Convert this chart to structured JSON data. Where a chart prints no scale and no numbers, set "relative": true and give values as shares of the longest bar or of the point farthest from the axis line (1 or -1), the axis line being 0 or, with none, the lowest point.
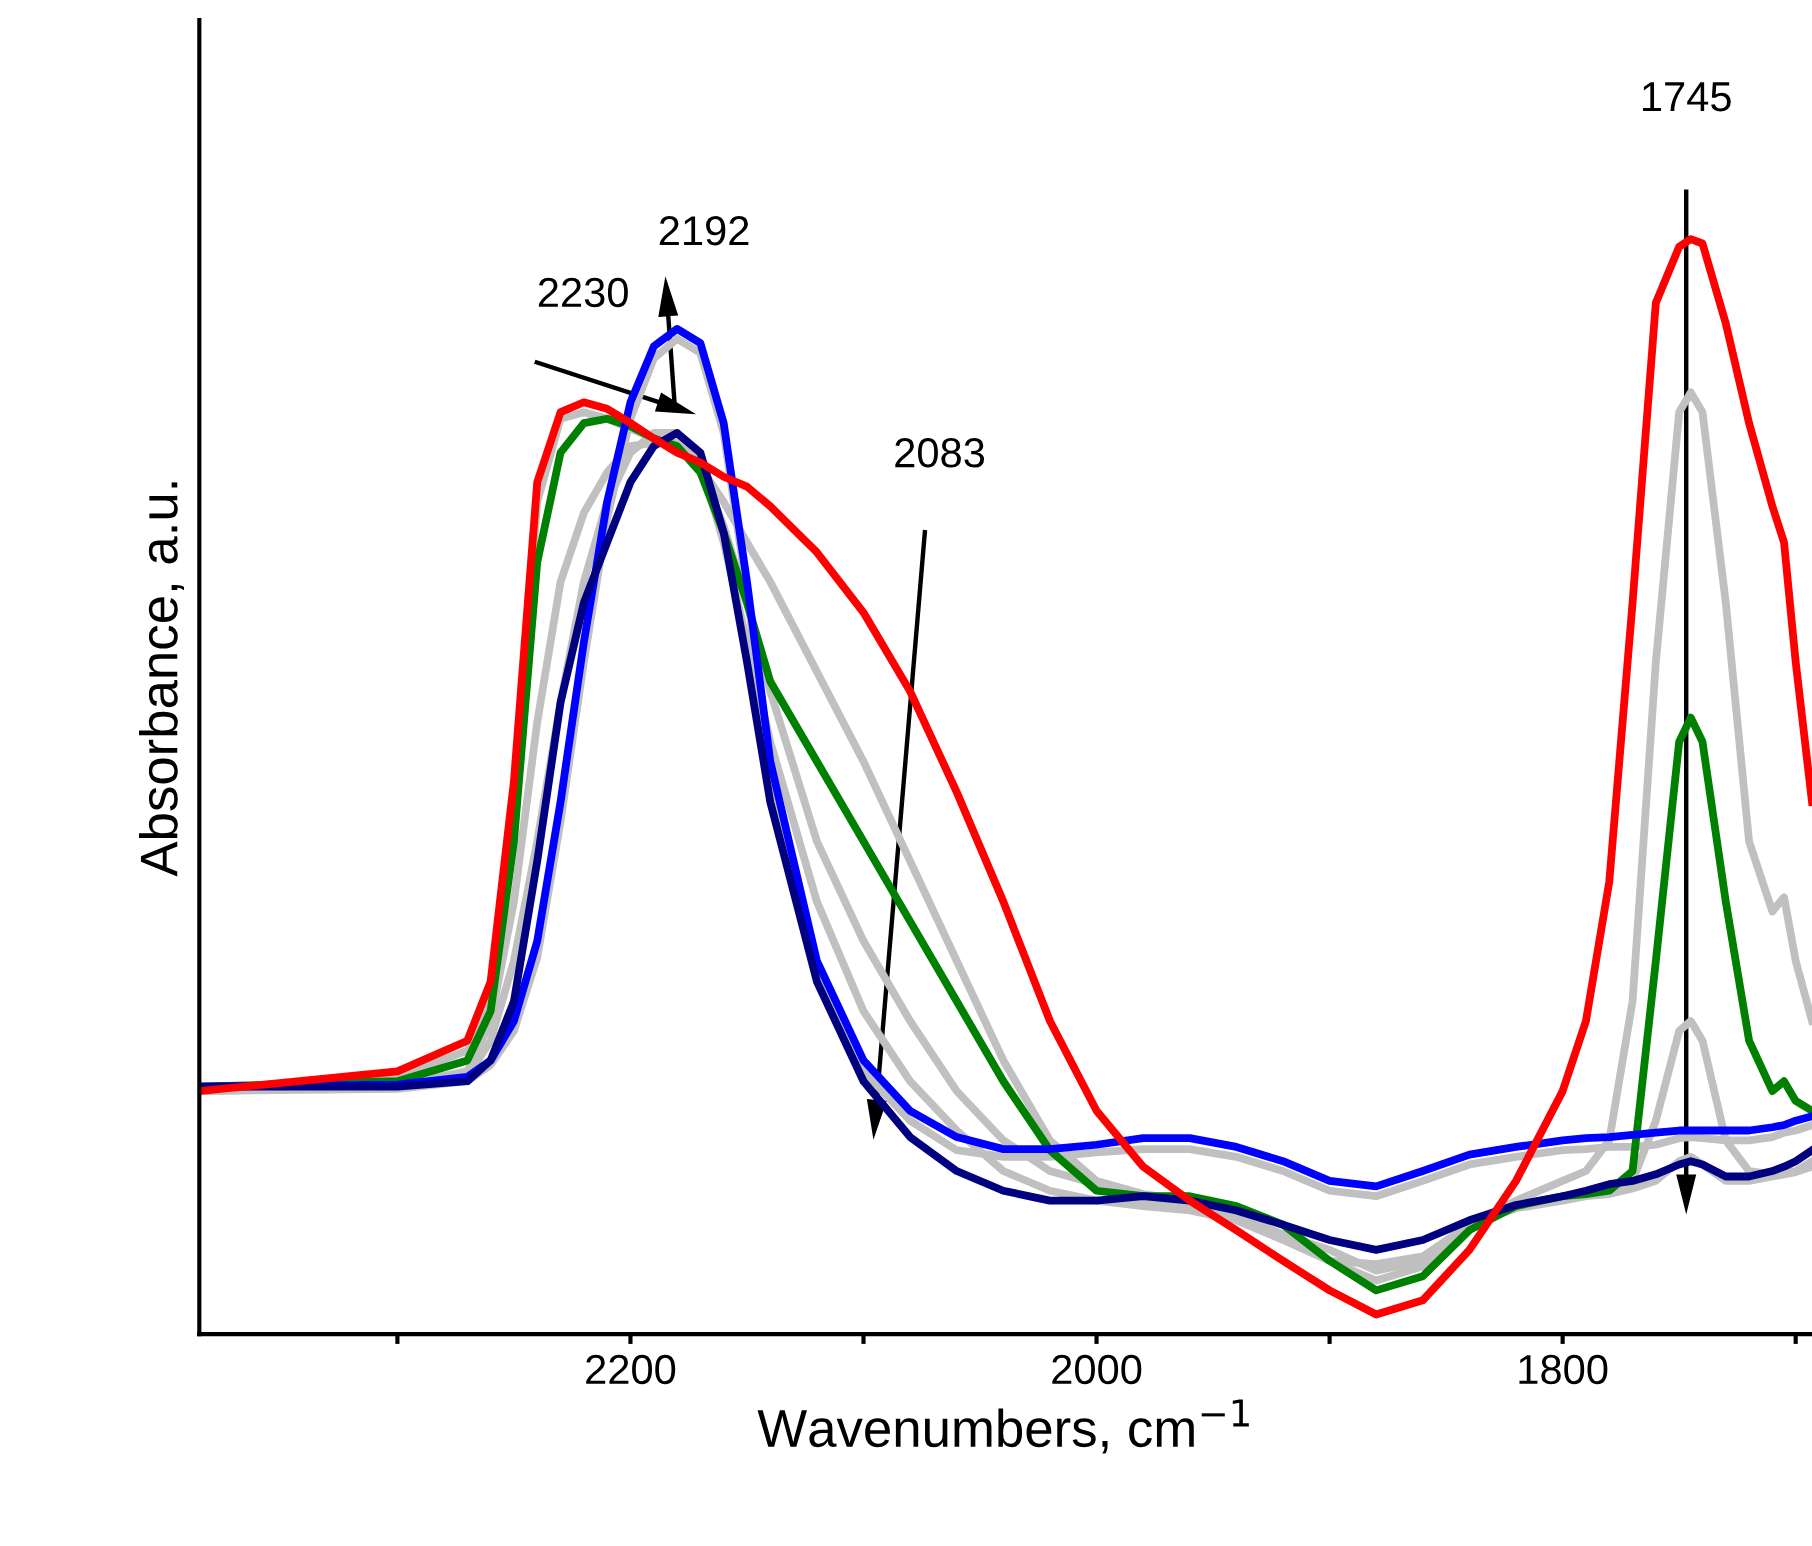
{
  "chart_data": {
    "type": "line",
    "relative": true,
    "xlabel": "Wavenumbers, cm$^{−1}$",
    "ylabel": "Absorbance, a.u.",
    "x": [
      2385,
      2300,
      2270,
      2260,
      2250,
      2240,
      2230,
      2220,
      2210,
      2200,
      2190,
      2180,
      2170,
      2160,
      2150,
      2140,
      2120,
      2100,
      2080,
      2060,
      2040,
      2020,
      2000,
      1980,
      1960,
      1940,
      1920,
      1900,
      1880,
      1860,
      1840,
      1820,
      1800,
      1790,
      1780,
      1770,
      1760,
      1750,
      1745,
      1740,
      1730,
      1720,
      1710,
      1705,
      1700,
      1693
    ],
    "xlim": [
      2385,
      1693
    ],
    "xticks": [
      {
        "value": 2300,
        "label": null
      },
      2200,
      {
        "value": 2100,
        "label": null
      },
      2000,
      {
        "value": 1900,
        "label": null
      },
      1800,
      {
        "value": 1700,
        "label": null
      }
    ],
    "grid": false,
    "marker": "none",
    "line_style": "solid",
    "series": [
      {
        "color": "#c0c0c0",
        "values": [
          0.222,
          0.235,
          0.259,
          0.313,
          0.486,
          0.76,
          0.836,
          0.842,
          0.836,
          0.827,
          0.818,
          0.811,
          0.792,
          0.76,
          0.723,
          0.687,
          0.605,
          0.523,
          0.432,
          0.341,
          0.25,
          0.177,
          0.14,
          0.128,
          0.122,
          0.109,
          0.091,
          0.067,
          0.049,
          0.062,
          0.1,
          0.122,
          0.14,
          0.149,
          0.177,
          0.304,
          0.614,
          0.842,
          0.86,
          0.842,
          0.668,
          0.45,
          0.386,
          0.399,
          0.341,
          0.286
        ]
      },
      {
        "color": "#c0c0c0",
        "values": [
          0.222,
          0.228,
          0.24,
          0.286,
          0.395,
          0.559,
          0.687,
          0.75,
          0.787,
          0.811,
          0.814,
          0.814,
          0.792,
          0.738,
          0.668,
          0.587,
          0.45,
          0.359,
          0.286,
          0.222,
          0.177,
          0.149,
          0.137,
          0.122,
          0.117,
          0.107,
          0.091,
          0.077,
          0.058,
          0.067,
          0.1,
          0.117,
          0.126,
          0.128,
          0.131,
          0.14,
          0.195,
          0.277,
          0.286,
          0.268,
          0.177,
          0.149,
          0.146,
          0.148,
          0.149,
          0.158
        ]
      },
      {
        "color": "#c0c0c0",
        "values": [
          0.222,
          0.226,
          0.235,
          0.268,
          0.341,
          0.45,
          0.577,
          0.687,
          0.76,
          0.805,
          0.823,
          0.823,
          0.796,
          0.723,
          0.632,
          0.541,
          0.395,
          0.295,
          0.231,
          0.186,
          0.149,
          0.131,
          0.122,
          0.117,
          0.113,
          0.104,
          0.086,
          0.067,
          0.064,
          0.071,
          0.1,
          0.115,
          0.122,
          0.126,
          0.128,
          0.133,
          0.14,
          0.158,
          0.162,
          0.155,
          0.14,
          0.14,
          0.144,
          0.146,
          0.148,
          0.153
        ]
      },
      {
        "color": "#c0c0c0",
        "values": [
          0.222,
          0.224,
          0.231,
          0.246,
          0.277,
          0.344,
          0.468,
          0.614,
          0.745,
          0.836,
          0.891,
          0.909,
          0.896,
          0.823,
          0.678,
          0.514,
          0.332,
          0.24,
          0.195,
          0.168,
          0.162,
          0.162,
          0.166,
          0.169,
          0.169,
          0.162,
          0.149,
          0.131,
          0.126,
          0.14,
          0.155,
          0.162,
          0.168,
          0.169,
          0.171,
          0.171,
          0.173,
          0.179,
          0.18,
          0.179,
          0.177,
          0.177,
          0.18,
          0.184,
          0.186,
          0.191
        ]
      },
      {
        "color": "#008000",
        "values": [
          0.226,
          0.231,
          0.25,
          0.295,
          0.45,
          0.705,
          0.805,
          0.832,
          0.836,
          0.829,
          0.818,
          0.811,
          0.787,
          0.732,
          0.668,
          0.596,
          0.523,
          0.45,
          0.377,
          0.304,
          0.231,
          0.168,
          0.131,
          0.126,
          0.126,
          0.117,
          0.1,
          0.067,
          0.04,
          0.053,
          0.095,
          0.117,
          0.126,
          0.128,
          0.131,
          0.149,
          0.341,
          0.541,
          0.563,
          0.541,
          0.395,
          0.268,
          0.222,
          0.231,
          0.213,
          0.204
        ]
      },
      {
        "color": "#0000ff",
        "values": [
          0.226,
          0.228,
          0.235,
          0.25,
          0.286,
          0.359,
          0.486,
          0.632,
          0.76,
          0.851,
          0.902,
          0.918,
          0.905,
          0.832,
          0.687,
          0.523,
          0.341,
          0.25,
          0.204,
          0.18,
          0.169,
          0.169,
          0.173,
          0.179,
          0.179,
          0.171,
          0.158,
          0.14,
          0.135,
          0.149,
          0.164,
          0.171,
          0.177,
          0.179,
          0.18,
          0.182,
          0.184,
          0.186,
          0.186,
          0.186,
          0.186,
          0.186,
          0.189,
          0.191,
          0.195,
          0.199
        ]
      },
      {
        "color": "#000080",
        "values": [
          0.226,
          0.226,
          0.231,
          0.25,
          0.304,
          0.432,
          0.577,
          0.668,
          0.723,
          0.778,
          0.811,
          0.823,
          0.805,
          0.732,
          0.614,
          0.486,
          0.322,
          0.231,
          0.18,
          0.149,
          0.131,
          0.122,
          0.122,
          0.126,
          0.122,
          0.113,
          0.1,
          0.086,
          0.077,
          0.086,
          0.104,
          0.118,
          0.126,
          0.131,
          0.137,
          0.14,
          0.146,
          0.155,
          0.158,
          0.155,
          0.144,
          0.144,
          0.149,
          0.153,
          0.158,
          0.168
        ]
      },
      {
        "color": "#ff0000",
        "values": [
          0.222,
          0.24,
          0.268,
          0.322,
          0.505,
          0.778,
          0.842,
          0.851,
          0.845,
          0.832,
          0.818,
          0.805,
          0.796,
          0.783,
          0.774,
          0.756,
          0.714,
          0.659,
          0.587,
          0.495,
          0.395,
          0.286,
          0.204,
          0.153,
          0.122,
          0.095,
          0.067,
          0.04,
          0.018,
          0.031,
          0.077,
          0.14,
          0.222,
          0.286,
          0.413,
          0.668,
          0.942,
          0.993,
          1.0,
          0.996,
          0.923,
          0.832,
          0.756,
          0.723,
          0.614,
          0.486
        ]
      }
    ],
    "annotations": [
      "2230",
      "2192",
      "2083",
      "1745"
    ]
  }
}
